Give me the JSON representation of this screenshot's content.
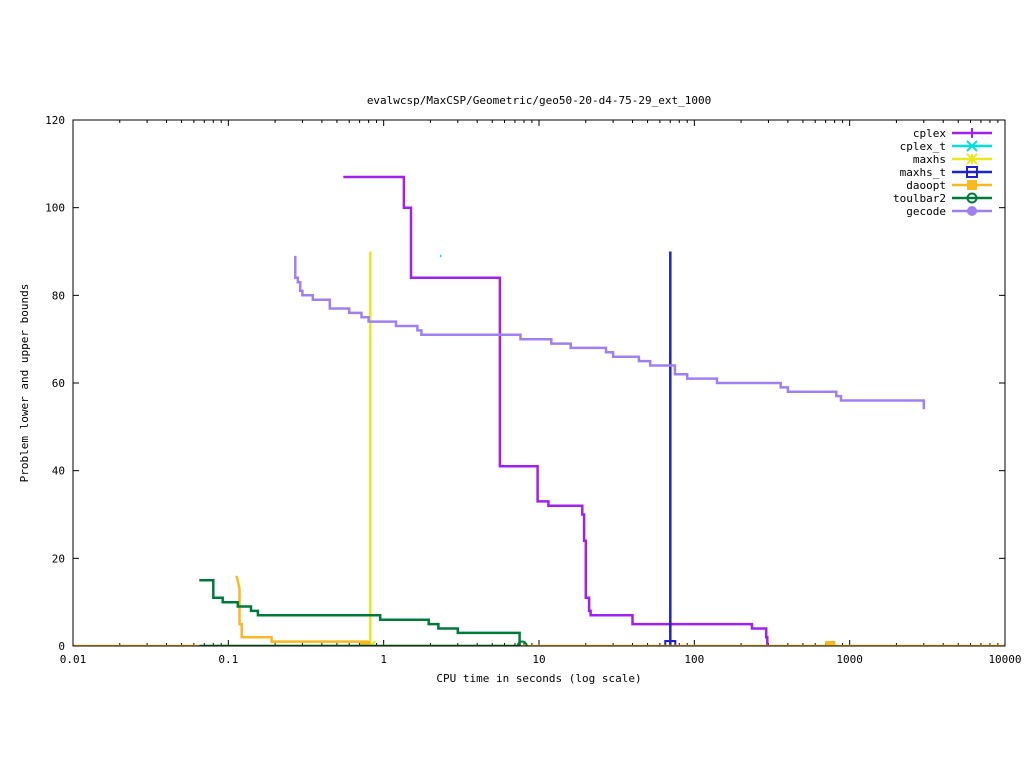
{
  "chart_data": {
    "type": "line",
    "title": "evalwcsp/MaxCSP/Geometric/geo50-20-d4-75-29_ext_1000",
    "xlabel": "CPU time in seconds (log scale)",
    "ylabel": "Problem lower and upper bounds",
    "xscale": "log",
    "xlim": [
      0.01,
      10000
    ],
    "ylim": [
      0,
      120
    ],
    "x_ticks": [
      0.01,
      0.1,
      1,
      10,
      100,
      1000,
      10000
    ],
    "x_tick_labels": [
      "0.01",
      "0.1",
      "1",
      "10",
      "100",
      "1000",
      "10000"
    ],
    "y_ticks": [
      0,
      20,
      40,
      60,
      80,
      100,
      120
    ],
    "y_tick_labels": [
      "0",
      "20",
      "40",
      "60",
      "80",
      "100",
      "120"
    ],
    "grid": false,
    "legend_position": "top-right",
    "series": [
      {
        "name": "cplex",
        "color": "#a020f0",
        "marker": "plus",
        "points": [
          [
            0.55,
            107
          ],
          [
            1.35,
            107
          ],
          [
            1.35,
            100
          ],
          [
            1.5,
            100
          ],
          [
            1.5,
            84
          ],
          [
            5.6,
            84
          ],
          [
            5.6,
            41
          ],
          [
            9.8,
            41
          ],
          [
            9.8,
            33
          ],
          [
            11.5,
            33
          ],
          [
            11.5,
            32
          ],
          [
            19,
            32
          ],
          [
            19,
            30
          ],
          [
            19.5,
            30
          ],
          [
            19.5,
            24
          ],
          [
            20,
            24
          ],
          [
            20,
            11
          ],
          [
            21,
            11
          ],
          [
            21,
            8
          ],
          [
            21.5,
            8
          ],
          [
            21.5,
            7
          ],
          [
            40,
            7
          ],
          [
            40,
            5
          ],
          [
            235,
            5
          ],
          [
            235,
            4
          ],
          [
            290,
            4
          ],
          [
            290,
            2
          ],
          [
            295,
            2
          ],
          [
            295,
            0
          ]
        ],
        "markers": []
      },
      {
        "name": "cplex_t",
        "color": "#00e0e0",
        "marker": "x",
        "points": [
          [
            2.3,
            89
          ],
          [
            2.35,
            89
          ]
        ],
        "markers": []
      },
      {
        "name": "maxhs",
        "color": "#e8e820",
        "marker": "star",
        "points": [
          [
            0.82,
            90
          ],
          [
            0.82,
            0
          ]
        ],
        "markers": [
          [
            0.82,
            0
          ]
        ]
      },
      {
        "name": "maxhs_t",
        "color": "#2020d0",
        "marker": "square",
        "points": [
          [
            70,
            90
          ],
          [
            70,
            0
          ]
        ],
        "markers": [
          [
            70,
            0
          ]
        ]
      },
      {
        "name": "daoopt",
        "color": "#f8b820",
        "marker": "filled-square",
        "points": [
          [
            0.01,
            0
          ],
          [
            10000,
            0
          ]
        ],
        "extra_lines": [
          [
            [
              0.113,
              16
            ],
            [
              0.118,
              13
            ],
            [
              0.118,
              5
            ],
            [
              0.122,
              5
            ],
            [
              0.122,
              2
            ],
            [
              0.19,
              2
            ],
            [
              0.19,
              1
            ],
            [
              0.8,
              1
            ]
          ]
        ],
        "markers": [
          [
            0.76,
            0
          ],
          [
            750,
            0
          ]
        ]
      },
      {
        "name": "toulbar2",
        "color": "#007a3c",
        "marker": "circle",
        "points": [
          [
            0.065,
            15
          ],
          [
            0.08,
            15
          ],
          [
            0.08,
            11
          ],
          [
            0.092,
            11
          ],
          [
            0.092,
            10
          ],
          [
            0.115,
            10
          ],
          [
            0.115,
            9
          ],
          [
            0.14,
            9
          ],
          [
            0.14,
            8
          ],
          [
            0.155,
            8
          ],
          [
            0.155,
            7
          ],
          [
            0.95,
            7
          ],
          [
            0.95,
            6
          ],
          [
            1.95,
            6
          ],
          [
            1.95,
            5
          ],
          [
            2.25,
            5
          ],
          [
            2.25,
            4
          ],
          [
            3,
            4
          ],
          [
            3,
            3
          ],
          [
            7.5,
            3
          ],
          [
            7.5,
            0
          ]
        ],
        "extra_lines": [
          [
            [
              0.065,
              0
            ],
            [
              7.5,
              0
            ]
          ]
        ],
        "markers": [
          [
            7.8,
            0
          ]
        ]
      },
      {
        "name": "gecode",
        "color": "#a080f0",
        "marker": "filled-circle",
        "points": [
          [
            0.27,
            89
          ],
          [
            0.27,
            84
          ],
          [
            0.28,
            84
          ],
          [
            0.28,
            83
          ],
          [
            0.29,
            83
          ],
          [
            0.29,
            81
          ],
          [
            0.3,
            81
          ],
          [
            0.3,
            80
          ],
          [
            0.35,
            80
          ],
          [
            0.35,
            79
          ],
          [
            0.45,
            79
          ],
          [
            0.45,
            77
          ],
          [
            0.6,
            77
          ],
          [
            0.6,
            76
          ],
          [
            0.72,
            76
          ],
          [
            0.72,
            75
          ],
          [
            0.8,
            75
          ],
          [
            0.8,
            74
          ],
          [
            1.2,
            74
          ],
          [
            1.2,
            73
          ],
          [
            1.65,
            73
          ],
          [
            1.65,
            72
          ],
          [
            1.75,
            72
          ],
          [
            1.75,
            71
          ],
          [
            7.6,
            71
          ],
          [
            7.6,
            70
          ],
          [
            12,
            70
          ],
          [
            12,
            69
          ],
          [
            16,
            69
          ],
          [
            16,
            68
          ],
          [
            27,
            68
          ],
          [
            27,
            67
          ],
          [
            30,
            67
          ],
          [
            30,
            66
          ],
          [
            44,
            66
          ],
          [
            44,
            65
          ],
          [
            52,
            65
          ],
          [
            52,
            64
          ],
          [
            75,
            64
          ],
          [
            75,
            62
          ],
          [
            90,
            62
          ],
          [
            90,
            61
          ],
          [
            140,
            61
          ],
          [
            140,
            60
          ],
          [
            360,
            60
          ],
          [
            360,
            59
          ],
          [
            400,
            59
          ],
          [
            400,
            58
          ],
          [
            820,
            58
          ],
          [
            820,
            57
          ],
          [
            880,
            57
          ],
          [
            880,
            56
          ],
          [
            3000,
            56
          ],
          [
            3000,
            54
          ]
        ],
        "markers": []
      }
    ]
  }
}
